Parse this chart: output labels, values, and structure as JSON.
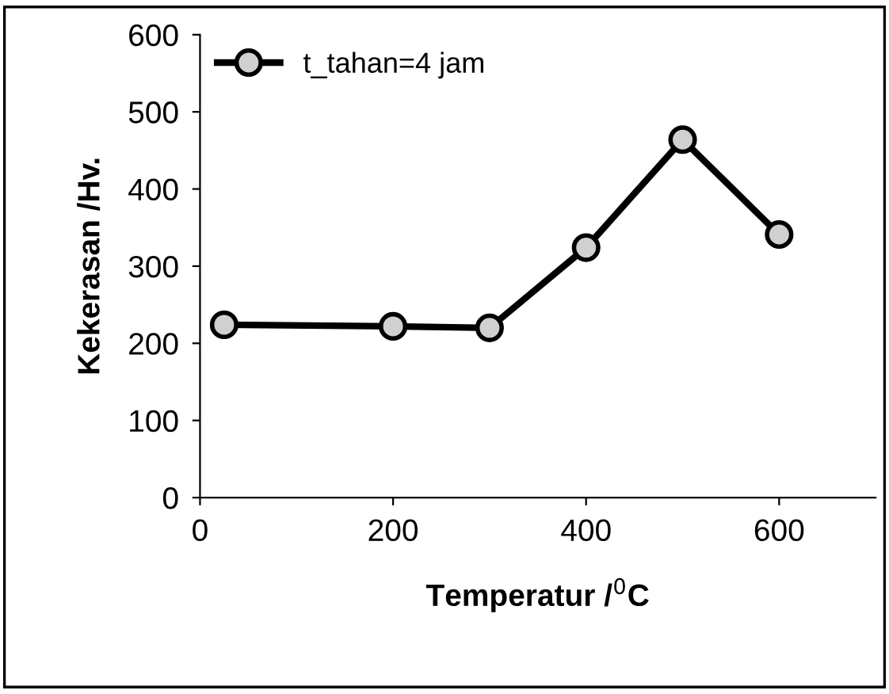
{
  "chart_data": {
    "type": "line",
    "xlabel": "Temperatur /$^{0}$C",
    "ylabel": "Kekerasan /Hv.",
    "x": [
      25,
      200,
      300,
      400,
      500,
      600
    ],
    "series": [
      {
        "name": "t_tahan=4 jam",
        "color": "#000000",
        "values": [
          224,
          222,
          220,
          324,
          464,
          341
        ]
      }
    ],
    "xlim": [
      0,
      700
    ],
    "xticks": [
      0,
      200,
      400,
      600
    ],
    "ylim": [
      0,
      600
    ],
    "yticks": [
      0,
      100,
      200,
      300,
      400,
      500,
      600
    ],
    "marker": "circle",
    "line_style": "solid",
    "legend": "top left",
    "grid": false
  }
}
